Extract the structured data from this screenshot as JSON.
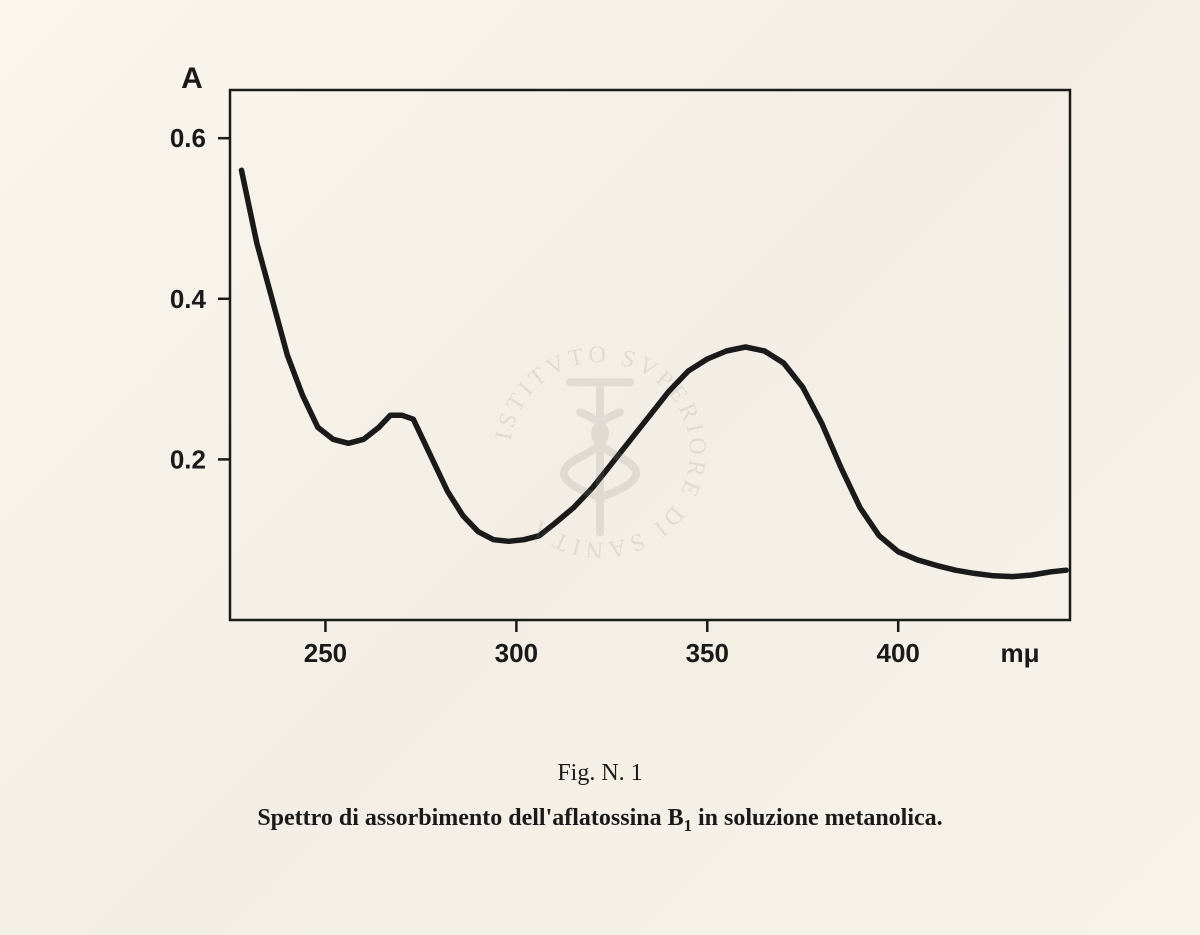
{
  "spectrum_chart": {
    "type": "line",
    "y_axis_label": "A",
    "x_axis_unit": "mμ",
    "x_ticks": [
      250,
      300,
      350,
      400
    ],
    "y_ticks": [
      0.2,
      0.4,
      0.6
    ],
    "xlim": [
      225,
      445
    ],
    "ylim": [
      0.0,
      0.66
    ],
    "curve": [
      [
        228,
        0.56
      ],
      [
        232,
        0.47
      ],
      [
        236,
        0.4
      ],
      [
        240,
        0.33
      ],
      [
        244,
        0.28
      ],
      [
        248,
        0.24
      ],
      [
        252,
        0.225
      ],
      [
        256,
        0.22
      ],
      [
        260,
        0.225
      ],
      [
        264,
        0.24
      ],
      [
        267,
        0.255
      ],
      [
        270,
        0.255
      ],
      [
        273,
        0.25
      ],
      [
        278,
        0.2
      ],
      [
        282,
        0.16
      ],
      [
        286,
        0.13
      ],
      [
        290,
        0.11
      ],
      [
        294,
        0.1
      ],
      [
        298,
        0.098
      ],
      [
        302,
        0.1
      ],
      [
        306,
        0.105
      ],
      [
        310,
        0.12
      ],
      [
        315,
        0.14
      ],
      [
        320,
        0.165
      ],
      [
        325,
        0.195
      ],
      [
        330,
        0.225
      ],
      [
        335,
        0.255
      ],
      [
        340,
        0.285
      ],
      [
        345,
        0.31
      ],
      [
        350,
        0.325
      ],
      [
        355,
        0.335
      ],
      [
        360,
        0.34
      ],
      [
        365,
        0.335
      ],
      [
        370,
        0.32
      ],
      [
        375,
        0.29
      ],
      [
        380,
        0.245
      ],
      [
        385,
        0.19
      ],
      [
        390,
        0.14
      ],
      [
        395,
        0.105
      ],
      [
        400,
        0.085
      ],
      [
        405,
        0.075
      ],
      [
        410,
        0.068
      ],
      [
        415,
        0.062
      ],
      [
        420,
        0.058
      ],
      [
        425,
        0.055
      ],
      [
        430,
        0.054
      ],
      [
        435,
        0.056
      ],
      [
        440,
        0.06
      ],
      [
        444,
        0.062
      ]
    ],
    "line_color": "#1a1a1a",
    "line_width": 5.5,
    "axis_color": "#1a1a1a",
    "axis_width": 2.5,
    "tick_length": 12,
    "tick_font_size": 26,
    "tick_font_weight": "bold",
    "label_font_size": 30,
    "label_font_weight": "bold",
    "background_color": "transparent"
  },
  "caption": {
    "fig_label": "Fig. N. 1",
    "text_pre": "Spettro di assorbimento dell'aflatossina B",
    "text_sub": "1",
    "text_post": " in soluzione metanolica."
  },
  "watermark": {
    "text_top": "SVPERIORE",
    "text_left": "ISTITVTO",
    "text_right": "DI SANITÀ"
  }
}
